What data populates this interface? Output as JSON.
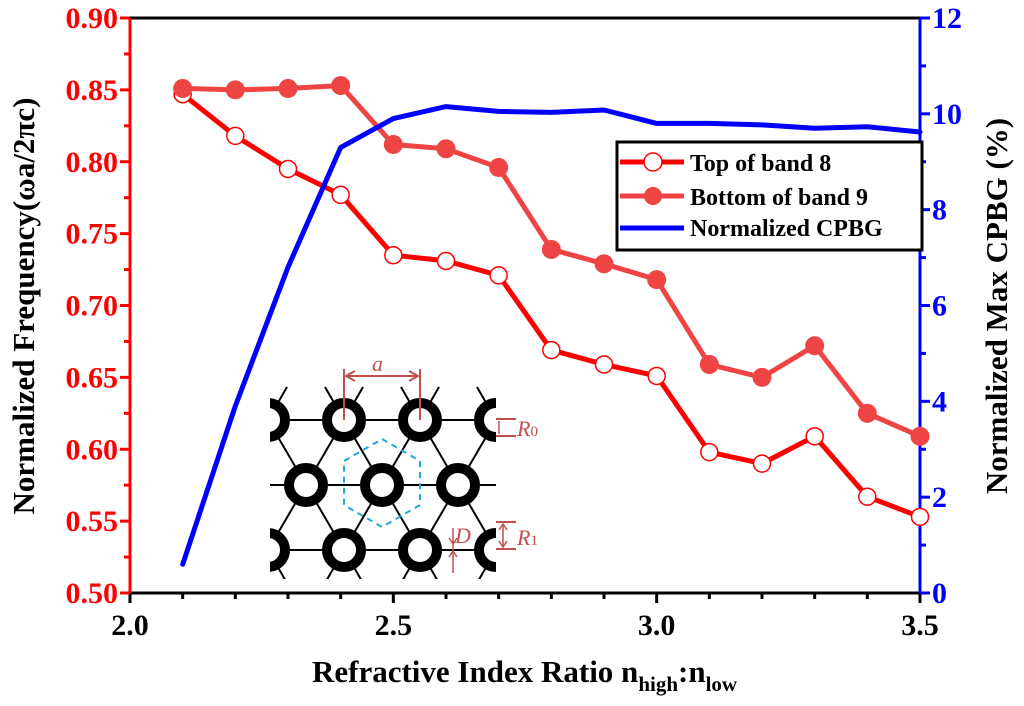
{
  "chart_data": {
    "type": "line",
    "title": "",
    "xlabel": "Refractive Index Ratio n",
    "xlabel_sub1": "high",
    "xlabel_sep": ":n",
    "xlabel_sub2": "low",
    "ylabel": "Normalized Frequency(ωa/2πc)",
    "y2label": "Normalized Max CPBG (%)",
    "xlim": [
      2.0,
      3.5
    ],
    "ylim": [
      0.5,
      0.9
    ],
    "y2lim": [
      0,
      12
    ],
    "x_ticks": [
      "2.0",
      "2.5",
      "3.0",
      "3.5"
    ],
    "y_ticks": [
      "0.50",
      "0.55",
      "0.60",
      "0.65",
      "0.70",
      "0.75",
      "0.80",
      "0.85",
      "0.90"
    ],
    "y2_ticks": [
      "0",
      "2",
      "4",
      "6",
      "8",
      "10",
      "12"
    ],
    "grid": false,
    "legend_position": "upper-right",
    "x": [
      2.1,
      2.2,
      2.3,
      2.4,
      2.5,
      2.6,
      2.7,
      2.8,
      2.9,
      3.0,
      3.1,
      3.2,
      3.3,
      3.4,
      3.5
    ],
    "series": [
      {
        "name": "Top of band 8",
        "axis": "left",
        "marker": "open-circle",
        "color": "#ff0000",
        "values": [
          0.847,
          0.818,
          0.795,
          0.777,
          0.735,
          0.731,
          0.721,
          0.669,
          0.659,
          0.651,
          0.598,
          0.59,
          0.609,
          0.567,
          0.553
        ]
      },
      {
        "name": "Bottom of band 9",
        "axis": "left",
        "marker": "filled-circle",
        "color": "#ee4444",
        "values": [
          0.851,
          0.85,
          0.851,
          0.853,
          0.812,
          0.809,
          0.796,
          0.739,
          0.729,
          0.718,
          0.659,
          0.65,
          0.672,
          0.625,
          0.609
        ]
      },
      {
        "name": "Normalized CPBG",
        "axis": "right",
        "marker": "none",
        "color": "#0000ff",
        "values": [
          0.6,
          3.9,
          6.8,
          9.3,
          9.9,
          10.15,
          10.05,
          10.03,
          10.08,
          9.8,
          9.8,
          9.77,
          9.7,
          9.73,
          9.62
        ]
      }
    ],
    "inset": {
      "labels": {
        "a": "a",
        "R0": "R",
        "R0_sub": "0",
        "R1": "R",
        "R1_sub": "1",
        "D": "D"
      }
    }
  },
  "colors": {
    "left_axis": "#ff0000",
    "right_axis": "#0000ff",
    "annotation": "#c0504d",
    "cell": "#1fa8d8"
  }
}
